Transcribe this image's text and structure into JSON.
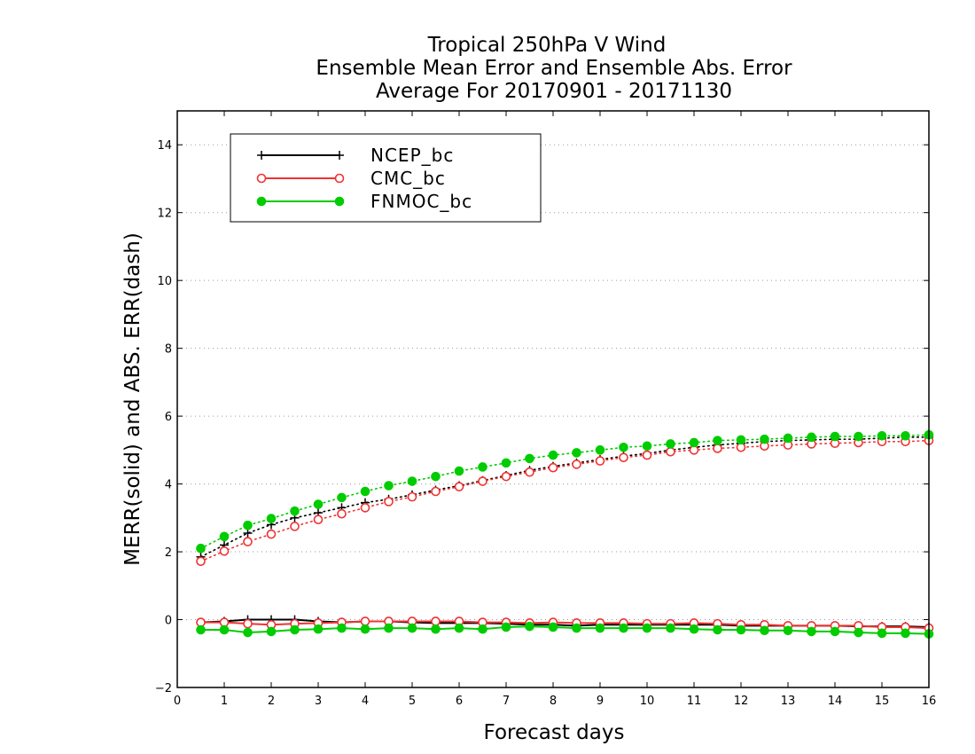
{
  "chart_data": {
    "type": "line",
    "title": [
      "Tropical 250hPa V Wind",
      "Ensemble Mean Error and Ensemble Abs. Error",
      "Average For 20170901 - 20171130"
    ],
    "xlabel": "Forecast days",
    "ylabel": "MERR(solid) and ABS. ERR(dash)",
    "xlim": [
      0,
      16
    ],
    "ylim": [
      -2,
      15
    ],
    "xticks": [
      0,
      1,
      2,
      3,
      4,
      5,
      6,
      7,
      8,
      9,
      10,
      11,
      12,
      13,
      14,
      15,
      16
    ],
    "yticks": [
      -2,
      0,
      2,
      4,
      6,
      8,
      10,
      12,
      14
    ],
    "ytick_labels": [
      "−2",
      "0",
      "2",
      "4",
      "6",
      "8",
      "10",
      "12",
      "14"
    ],
    "grid": "horizontal dotted",
    "legend_position": "top-left",
    "x": [
      0.5,
      1,
      1.5,
      2,
      2.5,
      3,
      3.5,
      4,
      4.5,
      5,
      5.5,
      6,
      6.5,
      7,
      7.5,
      8,
      8.5,
      9,
      9.5,
      10,
      10.5,
      11,
      11.5,
      12,
      12.5,
      13,
      13.5,
      14,
      14.5,
      15,
      15.5,
      16
    ],
    "series": [
      {
        "name": "NCEP_bc",
        "color": "#000000",
        "marker": "plus",
        "mean_error": [
          -0.08,
          -0.05,
          0.0,
          0.0,
          0.0,
          -0.05,
          -0.08,
          -0.05,
          -0.05,
          -0.08,
          -0.1,
          -0.1,
          -0.1,
          -0.12,
          -0.15,
          -0.15,
          -0.18,
          -0.15,
          -0.15,
          -0.15,
          -0.15,
          -0.15,
          -0.15,
          -0.18,
          -0.18,
          -0.18,
          -0.18,
          -0.18,
          -0.2,
          -0.2,
          -0.2,
          -0.22
        ],
        "abs_error": [
          1.85,
          2.2,
          2.55,
          2.8,
          3.0,
          3.15,
          3.3,
          3.45,
          3.55,
          3.68,
          3.82,
          3.95,
          4.1,
          4.25,
          4.4,
          4.52,
          4.62,
          4.72,
          4.82,
          4.9,
          5.0,
          5.08,
          5.15,
          5.2,
          5.25,
          5.28,
          5.3,
          5.32,
          5.32,
          5.35,
          5.38,
          5.38
        ]
      },
      {
        "name": "CMC_bc",
        "color": "#ee3333",
        "marker": "open-circle",
        "mean_error": [
          -0.08,
          -0.08,
          -0.12,
          -0.15,
          -0.12,
          -0.1,
          -0.08,
          -0.05,
          -0.05,
          -0.05,
          -0.05,
          -0.05,
          -0.08,
          -0.08,
          -0.1,
          -0.08,
          -0.1,
          -0.1,
          -0.1,
          -0.12,
          -0.12,
          -0.1,
          -0.12,
          -0.15,
          -0.15,
          -0.18,
          -0.18,
          -0.18,
          -0.18,
          -0.22,
          -0.22,
          -0.25
        ],
        "abs_error": [
          1.72,
          2.02,
          2.3,
          2.52,
          2.75,
          2.95,
          3.12,
          3.3,
          3.48,
          3.62,
          3.78,
          3.92,
          4.08,
          4.22,
          4.35,
          4.48,
          4.58,
          4.68,
          4.78,
          4.85,
          4.95,
          5.0,
          5.05,
          5.08,
          5.12,
          5.15,
          5.18,
          5.2,
          5.22,
          5.25,
          5.25,
          5.28
        ]
      },
      {
        "name": "FNMOC_bc",
        "color": "#00cc00",
        "marker": "filled-circle",
        "mean_error": [
          -0.3,
          -0.3,
          -0.38,
          -0.35,
          -0.3,
          -0.28,
          -0.25,
          -0.28,
          -0.25,
          -0.25,
          -0.28,
          -0.25,
          -0.28,
          -0.22,
          -0.2,
          -0.22,
          -0.25,
          -0.25,
          -0.25,
          -0.25,
          -0.25,
          -0.28,
          -0.3,
          -0.3,
          -0.32,
          -0.32,
          -0.35,
          -0.35,
          -0.38,
          -0.4,
          -0.4,
          -0.42
        ],
        "abs_error": [
          2.1,
          2.45,
          2.78,
          2.98,
          3.2,
          3.4,
          3.6,
          3.78,
          3.95,
          4.08,
          4.22,
          4.38,
          4.5,
          4.62,
          4.75,
          4.85,
          4.92,
          5.0,
          5.08,
          5.12,
          5.18,
          5.22,
          5.28,
          5.3,
          5.32,
          5.35,
          5.38,
          5.4,
          5.4,
          5.42,
          5.42,
          5.45
        ]
      }
    ]
  }
}
